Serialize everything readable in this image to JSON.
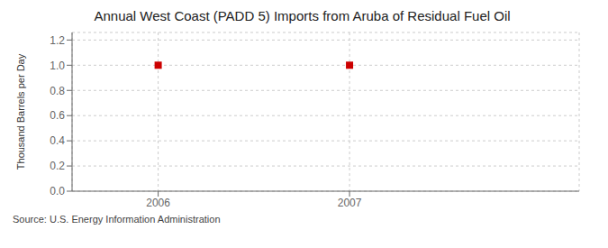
{
  "chart_data": {
    "type": "scatter",
    "title": "Annual West Coast (PADD 5) Imports from Aruba of Residual Fuel Oil",
    "ylabel": "Thousand Barrels per Day",
    "annotations": [
      "Source: U.S. Energy Information Administration"
    ],
    "x": [
      2006,
      2007
    ],
    "values": [
      1.0,
      1.0
    ],
    "color": "#cc0000",
    "marker": "square",
    "line_style": "none",
    "xlim": [
      2005.55,
      2008.2
    ],
    "ylim": [
      0.0,
      1.26
    ],
    "xticks": [
      2006,
      2007
    ],
    "yticks": [
      {
        "value": 0.0,
        "label": "0.0"
      },
      0.2,
      0.4,
      0.6,
      0.8,
      {
        "value": 1.0,
        "label": "1.0"
      },
      1.2
    ],
    "grid": true
  }
}
